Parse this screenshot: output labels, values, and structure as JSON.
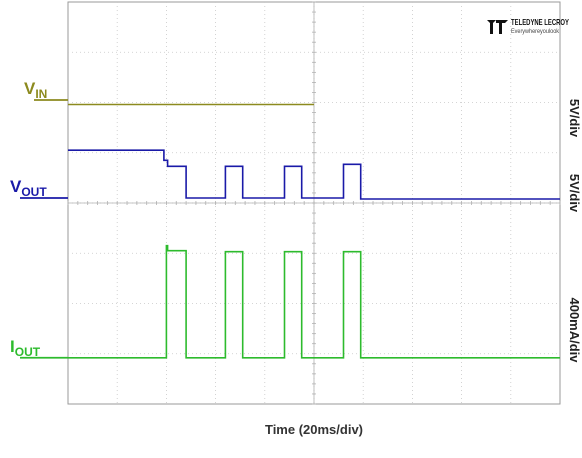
{
  "brand": {
    "name": "TELEDYNE LECROY",
    "tagline": "Everywhereyoulook"
  },
  "chart_data": {
    "type": "line",
    "xlabel": "Time (20ms/div)",
    "x_divisions": 10,
    "y_divisions": 8,
    "grid": true,
    "scales": [
      "5V/div",
      "5V/div",
      "400mA/div"
    ],
    "series": [
      {
        "name": "V_IN",
        "label_main": "V",
        "label_sub": "IN",
        "color": "#8c8a1e",
        "ground_div": 6.05,
        "segments": [
          [
            0,
            10,
            5.96
          ]
        ]
      },
      {
        "name": "V_OUT",
        "label_main": "V",
        "label_sub": "OUT",
        "color": "#1a1aa8",
        "ground_div": 4.1,
        "segments": [
          [
            0,
            3.9,
            5.05
          ],
          [
            3.9,
            4.05,
            4.85
          ],
          [
            4.05,
            4.8,
            4.73
          ],
          [
            4.8,
            6.4,
            4.1
          ],
          [
            6.4,
            7.1,
            4.73
          ],
          [
            7.1,
            8.8,
            4.1
          ],
          [
            8.8,
            9.5,
            4.73
          ],
          [
            9.5,
            11.2,
            4.1
          ],
          [
            11.2,
            11.9,
            4.77
          ],
          [
            11.9,
            20,
            4.08
          ]
        ]
      },
      {
        "name": "I_OUT",
        "label_main": "I",
        "label_sub": "OUT",
        "color": "#2dbb2d",
        "ground_div": 0.92,
        "segments": [
          [
            0,
            4,
            0.92
          ],
          [
            4,
            4.05,
            3.15
          ],
          [
            4.05,
            4.8,
            3.05
          ],
          [
            4.8,
            6.4,
            0.92
          ],
          [
            6.4,
            7.1,
            3.03
          ],
          [
            7.1,
            8.8,
            0.92
          ],
          [
            8.8,
            9.5,
            3.03
          ],
          [
            9.5,
            11.2,
            0.92
          ],
          [
            11.2,
            11.9,
            3.03
          ],
          [
            11.9,
            20,
            0.92
          ]
        ]
      }
    ]
  }
}
